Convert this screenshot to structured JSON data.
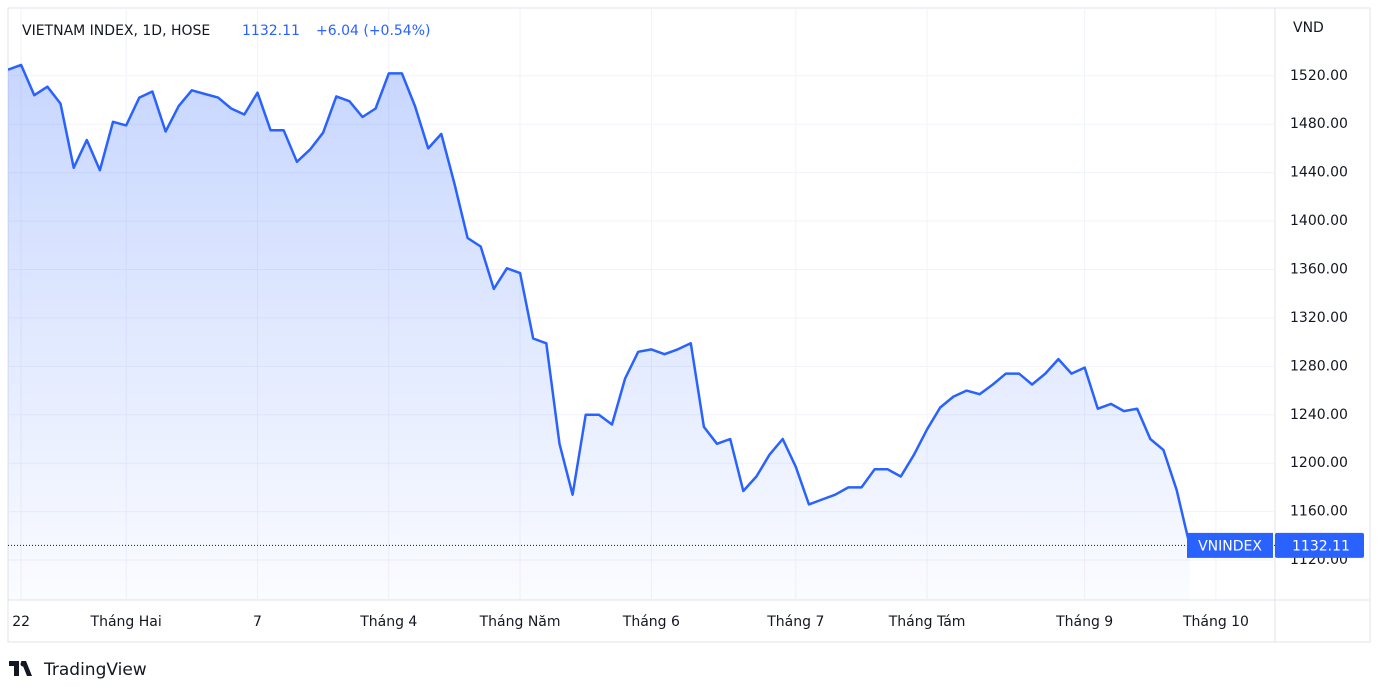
{
  "chart_data": {
    "type": "area",
    "title": "VIETNAM INDEX, 1D, HOSE",
    "change_label": "+6.04 (+0.54%)",
    "y_axis_label": "VND",
    "watermark": "TradingView",
    "grid": true,
    "categories": [
      null,
      "22",
      null,
      null,
      null,
      null,
      null,
      null,
      null,
      "Tháng Hai",
      null,
      null,
      null,
      null,
      null,
      null,
      null,
      null,
      null,
      "7",
      null,
      null,
      null,
      null,
      null,
      null,
      null,
      null,
      null,
      "Tháng 4",
      null,
      null,
      null,
      null,
      null,
      null,
      null,
      null,
      null,
      "Tháng Năm",
      null,
      null,
      null,
      null,
      null,
      null,
      null,
      null,
      null,
      "Tháng 6",
      null,
      null,
      null,
      null,
      null,
      null,
      null,
      null,
      null,
      null,
      "Tháng 7",
      null,
      null,
      null,
      null,
      null,
      null,
      null,
      null,
      null,
      "Tháng Tám",
      null,
      null,
      null,
      null,
      null,
      null,
      null,
      null,
      null,
      null,
      null,
      "Tháng 9",
      null,
      null,
      null,
      null,
      null,
      null,
      null,
      null,
      null,
      "Tháng 10"
    ],
    "series": [
      {
        "name": "VNINDEX",
        "color": "#2962ff",
        "values": [
          1525,
          1529,
          1504,
          1511,
          1497,
          1444,
          1467,
          1442,
          1482,
          1479,
          1502,
          1507,
          1474,
          1495,
          1508,
          1505,
          1502,
          1493,
          1488,
          1506,
          1475,
          1475,
          1449,
          1459,
          1473,
          1503,
          1499,
          1486,
          1493,
          1522,
          1522,
          1495,
          1460,
          1472,
          1431,
          1386,
          1379,
          1344,
          1361,
          1357,
          1303,
          1299,
          1216,
          1174,
          1240,
          1240,
          1232,
          1270,
          1292,
          1294,
          1290,
          1294,
          1299,
          1230,
          1216,
          1220,
          1177,
          1189,
          1207,
          1220,
          1197,
          1166,
          1170,
          1174,
          1180,
          1180,
          1195,
          1195,
          1189,
          1207,
          1228,
          1246,
          1255,
          1260,
          1257,
          1265,
          1274,
          1274,
          1265,
          1274,
          1286,
          1274,
          1279,
          1245,
          1249,
          1243,
          1245,
          1220,
          1211,
          1178,
          1132.11,
          null,
          null
        ]
      }
    ],
    "ylim": [
      1087,
      1576
    ],
    "yticks": [
      {
        "value": 1120,
        "label": "1120.00"
      },
      {
        "value": 1160,
        "label": "1160.00"
      },
      {
        "value": 1200,
        "label": "1200.00"
      },
      {
        "value": 1240,
        "label": "1240.00"
      },
      {
        "value": 1280,
        "label": "1280.00"
      },
      {
        "value": 1320,
        "label": "1320.00"
      },
      {
        "value": 1360,
        "label": "1360.00"
      },
      {
        "value": 1400,
        "label": "1400.00"
      },
      {
        "value": 1440,
        "label": "1440.00"
      },
      {
        "value": 1480,
        "label": "1480.00"
      },
      {
        "value": 1520,
        "label": "1520.00"
      }
    ]
  }
}
